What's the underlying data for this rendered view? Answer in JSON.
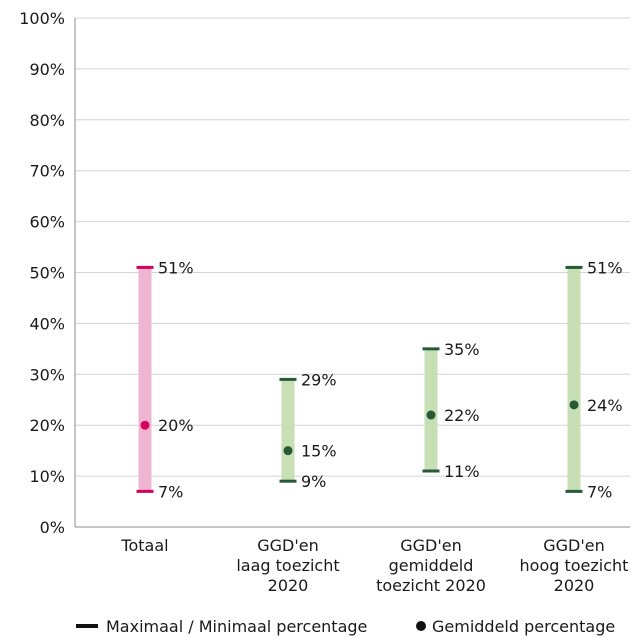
{
  "chart_data": {
    "type": "range",
    "title": "",
    "xlabel": "",
    "ylabel": "",
    "ylim": [
      0,
      100
    ],
    "yticks": [
      0,
      10,
      20,
      30,
      40,
      50,
      60,
      70,
      80,
      90,
      100
    ],
    "ytick_labels": [
      "0%",
      "10%",
      "20%",
      "30%",
      "40%",
      "50%",
      "60%",
      "70%",
      "80%",
      "90%",
      "100%"
    ],
    "grid": true,
    "categories": [
      {
        "lines": [
          "Totaal"
        ],
        "min": 7,
        "max": 51,
        "mean": 20,
        "min_label": "7%",
        "max_label": "51%",
        "mean_label": "20%",
        "bar_color": "#eeb4d0",
        "mark_color": "#d6005f"
      },
      {
        "lines": [
          "GGD'en",
          "laag toezicht",
          "2020"
        ],
        "min": 9,
        "max": 29,
        "mean": 15,
        "min_label": "9%",
        "max_label": "29%",
        "mean_label": "15%",
        "bar_color": "#c6dfb5",
        "mark_color": "#275937"
      },
      {
        "lines": [
          "GGD'en",
          "gemiddeld",
          "toezicht 2020"
        ],
        "min": 11,
        "max": 35,
        "mean": 22,
        "min_label": "11%",
        "max_label": "35%",
        "mean_label": "22%",
        "bar_color": "#c6dfb5",
        "mark_color": "#275937"
      },
      {
        "lines": [
          "GGD'en",
          "hoog toezicht",
          "2020"
        ],
        "min": 7,
        "max": 51,
        "mean": 24,
        "min_label": "7%",
        "max_label": "51%",
        "mean_label": "24%",
        "bar_color": "#c6dfb5",
        "mark_color": "#275937"
      }
    ],
    "legend": {
      "placement": "bottom",
      "range_label": "Maximaal / Minimaal  percentage",
      "mean_label": "Gemiddeld percentage"
    }
  }
}
